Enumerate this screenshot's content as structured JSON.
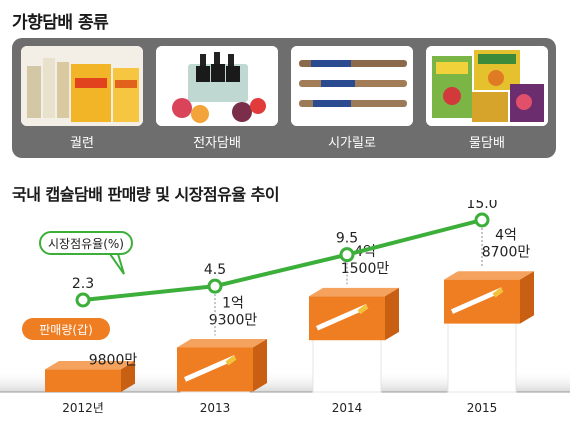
{
  "header": {
    "title": "가향담배 종류"
  },
  "products": [
    {
      "label": "궐련",
      "icon": "cigarette-pack-icon"
    },
    {
      "label": "전자담배",
      "icon": "e-liquid-bottles-icon"
    },
    {
      "label": "시가릴로",
      "icon": "cigarillo-icon"
    },
    {
      "label": "물담배",
      "icon": "hookah-tobacco-box-icon"
    }
  ],
  "colors": {
    "line": "#3cae3a",
    "bar": "#ef7d22",
    "bar_dark": "#c95f12",
    "label_bg": "#ef7d22",
    "panel": "#6e6e6e"
  },
  "chart_data": {
    "type": "bar+line",
    "title": "국내 캡슐담배 판매량 및 시장점유율 추이",
    "categories": [
      "2012년",
      "2013",
      "2014",
      "2015"
    ],
    "series": [
      {
        "name": "판매량(갑)",
        "type": "bar",
        "values": [
          98000000,
          193000000,
          415000000,
          487000000
        ],
        "labels": [
          [
            "9800만"
          ],
          [
            "1억",
            "9300만"
          ],
          [
            "4억",
            "1500만"
          ],
          [
            "4억",
            "8700만"
          ]
        ]
      },
      {
        "name": "시장점유율(%)",
        "type": "line",
        "values": [
          2.3,
          4.5,
          9.5,
          15.0
        ],
        "labels": [
          "2.3",
          "4.5",
          "9.5",
          "15.0"
        ]
      }
    ]
  }
}
